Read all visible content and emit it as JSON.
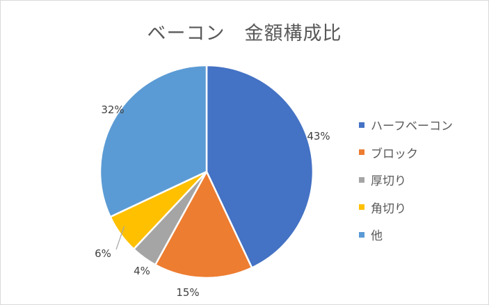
{
  "chart_data": {
    "type": "pie",
    "title": "ベーコン　金額構成比",
    "legend_position": "right",
    "slices": [
      {
        "name": "ハーフベーコン",
        "value": 43,
        "label": "43%",
        "color": "#4472C4"
      },
      {
        "name": "ブロック",
        "value": 15,
        "label": "15%",
        "color": "#ED7D31"
      },
      {
        "name": "厚切り",
        "value": 4,
        "label": "4%",
        "color": "#A5A5A5"
      },
      {
        "name": "角切り",
        "value": 6,
        "label": "6%",
        "color": "#FFC000"
      },
      {
        "name": "他",
        "value": 32,
        "label": "32%",
        "color": "#5B9BD5"
      }
    ]
  }
}
